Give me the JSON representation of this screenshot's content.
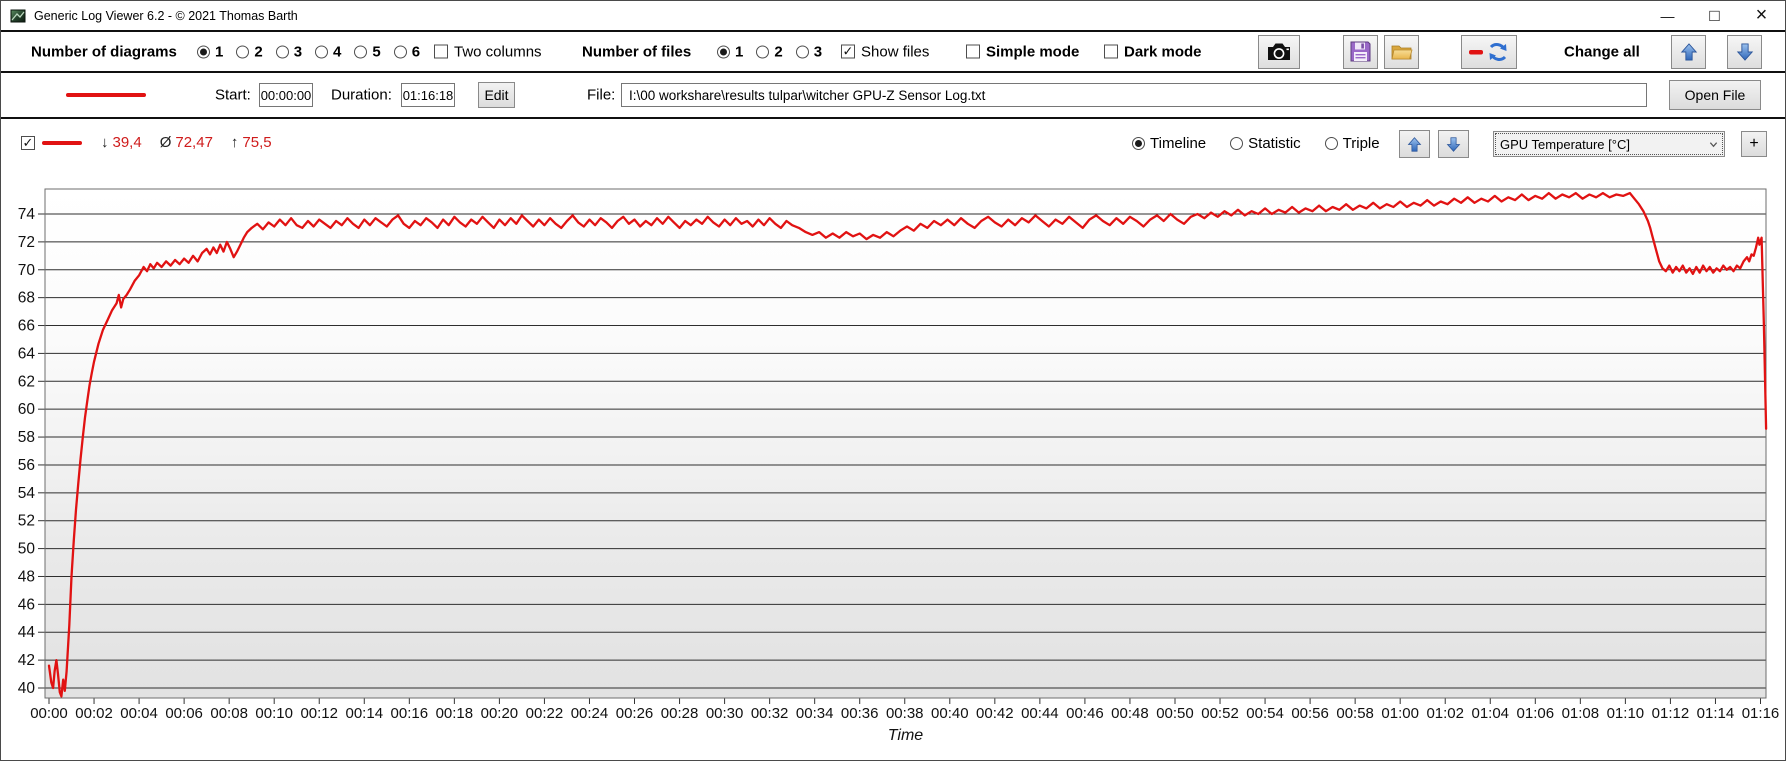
{
  "window": {
    "title": "Generic Log Viewer 6.2 - © 2021 Thomas Barth",
    "controls": {
      "minimize": "—",
      "maximize": "□",
      "close": "×"
    }
  },
  "colors": {
    "accent_red": "#e11212",
    "arrow_blue": "#3f76c9",
    "grid": "#2e2e2e"
  },
  "toolbar": {
    "diagrams_label": "Number of diagrams",
    "diagrams_options": [
      {
        "label": "1",
        "selected": true
      },
      {
        "label": "2",
        "selected": false
      },
      {
        "label": "3",
        "selected": false
      },
      {
        "label": "4",
        "selected": false
      },
      {
        "label": "5",
        "selected": false
      },
      {
        "label": "6",
        "selected": false
      }
    ],
    "two_columns": {
      "label": "Two columns",
      "checked": false
    },
    "files_label": "Number of files",
    "files_options": [
      {
        "label": "1",
        "selected": true
      },
      {
        "label": "2",
        "selected": false
      },
      {
        "label": "3",
        "selected": false
      }
    ],
    "show_files": {
      "label": "Show files",
      "checked": true
    },
    "simple_mode": {
      "label": "Simple mode",
      "checked": false
    },
    "dark_mode": {
      "label": "Dark mode",
      "checked": false
    },
    "change_all_label": "Change all"
  },
  "filebar": {
    "start_label": "Start:",
    "start_value": "00:00:00",
    "duration_label": "Duration:",
    "duration_value": "01:16:18",
    "edit_button": "Edit",
    "file_label": "File:",
    "file_path": "I:\\00 workshare\\results tulpar\\witcher GPU-Z Sensor Log.txt",
    "open_button": "Open File"
  },
  "chart_header": {
    "series_checkbox_checked": true,
    "min_symbol": "↓",
    "min_value": "39,4",
    "avg_symbol": "Ø",
    "avg_value": "72,47",
    "max_symbol": "↑",
    "max_value": "75,5",
    "view_options": [
      {
        "label": "Timeline",
        "selected": true
      },
      {
        "label": "Statistic",
        "selected": false
      },
      {
        "label": "Triple",
        "selected": false
      }
    ],
    "dropdown_value": "GPU Temperature [°C]",
    "add_button": "+"
  },
  "chart_data": {
    "type": "line",
    "title": "GPU Temperature [°C]",
    "xlabel": "Time",
    "series_color": "#e11212",
    "stats": {
      "min": 39.4,
      "avg": 72.47,
      "max": 75.5
    },
    "y_ticks": [
      40,
      42,
      44,
      46,
      48,
      50,
      52,
      54,
      56,
      58,
      60,
      62,
      64,
      66,
      68,
      70,
      72,
      74
    ],
    "y_plot_range": [
      38.6,
      75.8
    ],
    "x_tick_interval_min": 2,
    "x_max_min": 76.3,
    "x_tick_labels": [
      "00:00",
      "00:02",
      "00:04",
      "00:06",
      "00:08",
      "00:10",
      "00:12",
      "00:14",
      "00:16",
      "00:18",
      "00:20",
      "00:22",
      "00:24",
      "00:26",
      "00:28",
      "00:30",
      "00:32",
      "00:34",
      "00:36",
      "00:38",
      "00:40",
      "00:42",
      "00:44",
      "00:46",
      "00:48",
      "00:50",
      "00:52",
      "00:54",
      "00:56",
      "00:58",
      "01:00",
      "01:02",
      "01:04",
      "01:06",
      "01:08",
      "01:10",
      "01:12",
      "01:14",
      "01:16"
    ],
    "points": [
      [
        0,
        41.6
      ],
      [
        0.1,
        40.4
      ],
      [
        0.18,
        40.0
      ],
      [
        0.25,
        41.2
      ],
      [
        0.33,
        42.0
      ],
      [
        0.4,
        41.0
      ],
      [
        0.48,
        39.7
      ],
      [
        0.55,
        39.4
      ],
      [
        0.63,
        40.6
      ],
      [
        0.7,
        39.8
      ],
      [
        0.78,
        41.2
      ],
      [
        0.9,
        44.5
      ],
      [
        1,
        48
      ],
      [
        1.1,
        50.6
      ],
      [
        1.2,
        52.8
      ],
      [
        1.3,
        54.7
      ],
      [
        1.4,
        56.4
      ],
      [
        1.5,
        58
      ],
      [
        1.6,
        59.4
      ],
      [
        1.7,
        60.6
      ],
      [
        1.8,
        61.7
      ],
      [
        1.9,
        62.6
      ],
      [
        2,
        63.4
      ],
      [
        2.2,
        64.7
      ],
      [
        2.4,
        65.7
      ],
      [
        2.6,
        66.4
      ],
      [
        2.8,
        67.1
      ],
      [
        3,
        67.6
      ],
      [
        3.1,
        68.2
      ],
      [
        3.2,
        67.3
      ],
      [
        3.3,
        67.9
      ],
      [
        3.45,
        68.2
      ],
      [
        3.6,
        68.6
      ],
      [
        3.8,
        69.2
      ],
      [
        4,
        69.6
      ],
      [
        4.2,
        70.2
      ],
      [
        4.35,
        69.9
      ],
      [
        4.5,
        70.4
      ],
      [
        4.65,
        70.1
      ],
      [
        4.8,
        70.5
      ],
      [
        5,
        70.2
      ],
      [
        5.2,
        70.6
      ],
      [
        5.4,
        70.3
      ],
      [
        5.6,
        70.7
      ],
      [
        5.8,
        70.4
      ],
      [
        6,
        70.8
      ],
      [
        6.2,
        70.5
      ],
      [
        6.4,
        71.0
      ],
      [
        6.6,
        70.6
      ],
      [
        6.8,
        71.2
      ],
      [
        7,
        71.5
      ],
      [
        7.15,
        71.1
      ],
      [
        7.3,
        71.6
      ],
      [
        7.45,
        71.2
      ],
      [
        7.6,
        71.8
      ],
      [
        7.75,
        71.3
      ],
      [
        7.9,
        72.0
      ],
      [
        8.05,
        71.5
      ],
      [
        8.2,
        70.9
      ],
      [
        8.35,
        71.3
      ],
      [
        8.5,
        71.8
      ],
      [
        8.65,
        72.3
      ],
      [
        8.8,
        72.7
      ],
      [
        9,
        73.0
      ],
      [
        9.25,
        73.3
      ],
      [
        9.5,
        72.9
      ],
      [
        9.75,
        73.4
      ],
      [
        10,
        73.1
      ],
      [
        10.25,
        73.6
      ],
      [
        10.5,
        73.2
      ],
      [
        10.75,
        73.7
      ],
      [
        11,
        73.2
      ],
      [
        11.25,
        73.0
      ],
      [
        11.5,
        73.5
      ],
      [
        11.75,
        73.1
      ],
      [
        12,
        73.6
      ],
      [
        12.25,
        73.3
      ],
      [
        12.5,
        73.0
      ],
      [
        12.75,
        73.5
      ],
      [
        13,
        73.2
      ],
      [
        13.25,
        73.7
      ],
      [
        13.5,
        73.3
      ],
      [
        13.75,
        73.0
      ],
      [
        14,
        73.6
      ],
      [
        14.25,
        73.2
      ],
      [
        14.5,
        73.7
      ],
      [
        14.75,
        73.4
      ],
      [
        15,
        73.1
      ],
      [
        15.25,
        73.6
      ],
      [
        15.5,
        73.9
      ],
      [
        15.75,
        73.3
      ],
      [
        16,
        73.0
      ],
      [
        16.25,
        73.5
      ],
      [
        16.5,
        73.2
      ],
      [
        16.75,
        73.7
      ],
      [
        17,
        73.4
      ],
      [
        17.25,
        73.0
      ],
      [
        17.5,
        73.6
      ],
      [
        17.75,
        73.2
      ],
      [
        18,
        73.8
      ],
      [
        18.25,
        73.4
      ],
      [
        18.5,
        73.1
      ],
      [
        18.75,
        73.6
      ],
      [
        19,
        73.3
      ],
      [
        19.25,
        73.8
      ],
      [
        19.5,
        73.4
      ],
      [
        19.75,
        73.0
      ],
      [
        20,
        73.6
      ],
      [
        20.25,
        73.2
      ],
      [
        20.5,
        73.7
      ],
      [
        20.75,
        73.3
      ],
      [
        21,
        73.9
      ],
      [
        21.25,
        73.5
      ],
      [
        21.5,
        73.1
      ],
      [
        21.75,
        73.6
      ],
      [
        22,
        73.2
      ],
      [
        22.25,
        73.7
      ],
      [
        22.5,
        73.3
      ],
      [
        22.75,
        73.0
      ],
      [
        23,
        73.5
      ],
      [
        23.25,
        73.9
      ],
      [
        23.5,
        73.4
      ],
      [
        23.75,
        73.1
      ],
      [
        24,
        73.6
      ],
      [
        24.25,
        73.2
      ],
      [
        24.5,
        73.7
      ],
      [
        24.75,
        73.4
      ],
      [
        25,
        73.0
      ],
      [
        25.25,
        73.5
      ],
      [
        25.5,
        73.8
      ],
      [
        25.75,
        73.3
      ],
      [
        26,
        73.6
      ],
      [
        26.25,
        73.1
      ],
      [
        26.5,
        73.5
      ],
      [
        26.75,
        73.2
      ],
      [
        27,
        73.7
      ],
      [
        27.25,
        73.3
      ],
      [
        27.5,
        73.8
      ],
      [
        27.75,
        73.4
      ],
      [
        28,
        73.0
      ],
      [
        28.25,
        73.5
      ],
      [
        28.5,
        73.2
      ],
      [
        28.75,
        73.6
      ],
      [
        29,
        73.3
      ],
      [
        29.25,
        73.8
      ],
      [
        29.5,
        73.4
      ],
      [
        29.75,
        73.1
      ],
      [
        30,
        73.6
      ],
      [
        30.25,
        73.2
      ],
      [
        30.5,
        73.7
      ],
      [
        30.75,
        73.3
      ],
      [
        31,
        73.5
      ],
      [
        31.25,
        73.1
      ],
      [
        31.5,
        73.6
      ],
      [
        31.75,
        73.2
      ],
      [
        32,
        73.7
      ],
      [
        32.25,
        73.3
      ],
      [
        32.5,
        73.0
      ],
      [
        32.75,
        73.5
      ],
      [
        33,
        73.2
      ],
      [
        33.3,
        73.0
      ],
      [
        33.6,
        72.7
      ],
      [
        33.9,
        72.5
      ],
      [
        34.2,
        72.7
      ],
      [
        34.5,
        72.3
      ],
      [
        34.8,
        72.6
      ],
      [
        35.1,
        72.3
      ],
      [
        35.4,
        72.7
      ],
      [
        35.7,
        72.4
      ],
      [
        36,
        72.6
      ],
      [
        36.3,
        72.2
      ],
      [
        36.6,
        72.5
      ],
      [
        36.9,
        72.3
      ],
      [
        37.2,
        72.7
      ],
      [
        37.5,
        72.4
      ],
      [
        37.8,
        72.8
      ],
      [
        38.1,
        73.1
      ],
      [
        38.4,
        72.8
      ],
      [
        38.7,
        73.3
      ],
      [
        39,
        73.0
      ],
      [
        39.3,
        73.5
      ],
      [
        39.6,
        73.2
      ],
      [
        39.9,
        73.6
      ],
      [
        40.2,
        73.2
      ],
      [
        40.5,
        73.7
      ],
      [
        40.8,
        73.3
      ],
      [
        41.1,
        73.0
      ],
      [
        41.4,
        73.5
      ],
      [
        41.7,
        73.8
      ],
      [
        42,
        73.4
      ],
      [
        42.3,
        73.1
      ],
      [
        42.6,
        73.6
      ],
      [
        42.9,
        73.2
      ],
      [
        43.2,
        73.7
      ],
      [
        43.5,
        73.4
      ],
      [
        43.8,
        73.9
      ],
      [
        44.1,
        73.5
      ],
      [
        44.4,
        73.1
      ],
      [
        44.7,
        73.6
      ],
      [
        45,
        73.3
      ],
      [
        45.3,
        73.8
      ],
      [
        45.6,
        73.4
      ],
      [
        45.9,
        73.0
      ],
      [
        46.2,
        73.6
      ],
      [
        46.5,
        73.9
      ],
      [
        46.8,
        73.5
      ],
      [
        47.1,
        73.2
      ],
      [
        47.4,
        73.7
      ],
      [
        47.7,
        73.3
      ],
      [
        48,
        73.8
      ],
      [
        48.3,
        73.5
      ],
      [
        48.6,
        73.1
      ],
      [
        48.9,
        73.6
      ],
      [
        49.2,
        73.9
      ],
      [
        49.5,
        73.5
      ],
      [
        49.8,
        74.0
      ],
      [
        50.1,
        73.6
      ],
      [
        50.4,
        73.3
      ],
      [
        50.7,
        73.8
      ],
      [
        51,
        74.0
      ],
      [
        51.3,
        73.7
      ],
      [
        51.6,
        74.1
      ],
      [
        51.9,
        73.8
      ],
      [
        52.2,
        74.2
      ],
      [
        52.5,
        73.9
      ],
      [
        52.8,
        74.3
      ],
      [
        53.1,
        73.9
      ],
      [
        53.4,
        74.2
      ],
      [
        53.7,
        74.0
      ],
      [
        54,
        74.4
      ],
      [
        54.3,
        74.0
      ],
      [
        54.6,
        74.3
      ],
      [
        54.9,
        74.1
      ],
      [
        55.2,
        74.5
      ],
      [
        55.5,
        74.1
      ],
      [
        55.8,
        74.4
      ],
      [
        56.1,
        74.2
      ],
      [
        56.4,
        74.6
      ],
      [
        56.7,
        74.2
      ],
      [
        57,
        74.5
      ],
      [
        57.3,
        74.3
      ],
      [
        57.6,
        74.7
      ],
      [
        57.9,
        74.3
      ],
      [
        58.2,
        74.6
      ],
      [
        58.5,
        74.4
      ],
      [
        58.8,
        74.8
      ],
      [
        59.1,
        74.4
      ],
      [
        59.4,
        74.7
      ],
      [
        59.7,
        74.5
      ],
      [
        60,
        74.9
      ],
      [
        60.3,
        74.5
      ],
      [
        60.6,
        74.8
      ],
      [
        60.9,
        74.6
      ],
      [
        61.2,
        75.0
      ],
      [
        61.5,
        74.6
      ],
      [
        61.8,
        74.9
      ],
      [
        62.1,
        74.7
      ],
      [
        62.4,
        75.1
      ],
      [
        62.7,
        74.8
      ],
      [
        63,
        75.2
      ],
      [
        63.3,
        74.8
      ],
      [
        63.6,
        75.1
      ],
      [
        63.9,
        74.9
      ],
      [
        64.2,
        75.3
      ],
      [
        64.5,
        74.9
      ],
      [
        64.8,
        75.2
      ],
      [
        65.1,
        75.0
      ],
      [
        65.4,
        75.4
      ],
      [
        65.7,
        75.0
      ],
      [
        66,
        75.3
      ],
      [
        66.3,
        75.1
      ],
      [
        66.6,
        75.5
      ],
      [
        66.9,
        75.1
      ],
      [
        67.2,
        75.4
      ],
      [
        67.5,
        75.2
      ],
      [
        67.8,
        75.5
      ],
      [
        68.1,
        75.1
      ],
      [
        68.4,
        75.4
      ],
      [
        68.7,
        75.2
      ],
      [
        69,
        75.5
      ],
      [
        69.3,
        75.2
      ],
      [
        69.6,
        75.4
      ],
      [
        69.9,
        75.3
      ],
      [
        70.2,
        75.5
      ],
      [
        70.4,
        75.1
      ],
      [
        70.6,
        74.7
      ],
      [
        70.8,
        74.2
      ],
      [
        71,
        73.5
      ],
      [
        71.1,
        73.0
      ],
      [
        71.2,
        72.4
      ],
      [
        71.35,
        71.5
      ],
      [
        71.5,
        70.6
      ],
      [
        71.65,
        70.1
      ],
      [
        71.8,
        69.9
      ],
      [
        71.95,
        70.3
      ],
      [
        72.1,
        69.8
      ],
      [
        72.25,
        70.2
      ],
      [
        72.4,
        69.9
      ],
      [
        72.55,
        70.3
      ],
      [
        72.7,
        69.8
      ],
      [
        72.85,
        70.1
      ],
      [
        73,
        69.7
      ],
      [
        73.15,
        70.2
      ],
      [
        73.3,
        69.8
      ],
      [
        73.45,
        70.3
      ],
      [
        73.6,
        69.9
      ],
      [
        73.75,
        70.2
      ],
      [
        73.9,
        69.8
      ],
      [
        74.05,
        70.1
      ],
      [
        74.2,
        69.9
      ],
      [
        74.35,
        70.3
      ],
      [
        74.5,
        70.0
      ],
      [
        74.65,
        70.2
      ],
      [
        74.8,
        69.9
      ],
      [
        74.95,
        70.3
      ],
      [
        75.1,
        70.1
      ],
      [
        75.25,
        70.6
      ],
      [
        75.4,
        70.9
      ],
      [
        75.5,
        70.6
      ],
      [
        75.6,
        71.1
      ],
      [
        75.7,
        71.0
      ],
      [
        75.8,
        71.6
      ],
      [
        75.9,
        72.3
      ],
      [
        75.95,
        71.8
      ],
      [
        76.05,
        72.3
      ],
      [
        76.15,
        66.0
      ],
      [
        76.25,
        58.6
      ]
    ]
  }
}
